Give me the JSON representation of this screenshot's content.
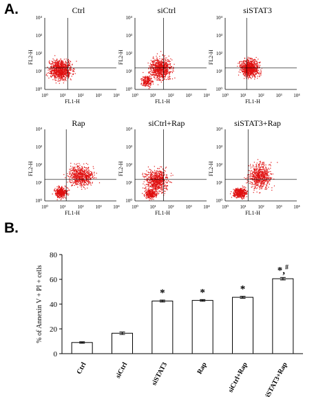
{
  "panel_a": {
    "label": "A.",
    "plots": [
      {
        "title": "Ctrl"
      },
      {
        "title": "siCtrl"
      },
      {
        "title": "siSTAT3"
      },
      {
        "title": "Rap"
      },
      {
        "title": "siCtrl+Rap"
      },
      {
        "title": "siSTAT3+Rap"
      }
    ],
    "x_axis_label": "FL1-H",
    "y_axis_label": "FL2-H",
    "tick_labels": [
      "10⁰",
      "10¹",
      "10²",
      "10³",
      "10⁴"
    ],
    "dot_color": "#e01010"
  },
  "panel_b": {
    "label": "B."
  },
  "chart_data": {
    "type": "bar",
    "categories": [
      "Ctrl",
      "siCtrl",
      "siSTAT3",
      "Rap",
      "siCtrl+Rap",
      "siSTAT3+Rap"
    ],
    "values": [
      9,
      16.5,
      42.5,
      43,
      45.5,
      60.5
    ],
    "errors": [
      0.6,
      1.0,
      0.8,
      0.7,
      0.8,
      1.0
    ],
    "annotations": [
      "",
      "",
      "*",
      "*",
      "*",
      "*,#"
    ],
    "ylabel": "% of Annexin V + PI + cells",
    "ylim": [
      0,
      80
    ],
    "yticks": [
      0,
      20,
      40,
      60,
      80
    ],
    "bar_fill": "#ffffff",
    "bar_edge": "#000000"
  }
}
